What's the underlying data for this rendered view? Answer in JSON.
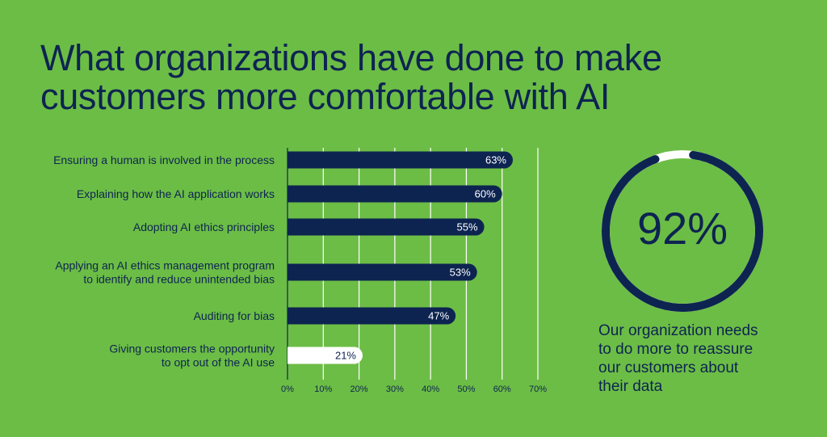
{
  "title": {
    "line1": "What organizations have done to make",
    "line2": "customers more comfortable with AI"
  },
  "colors": {
    "background": "#6cbd45",
    "navy": "#0d2451",
    "highlight": "#ffffff",
    "gridline": "#ffffff"
  },
  "chart_data": {
    "type": "bar",
    "orientation": "horizontal",
    "categories": [
      [
        "Ensuring a human is involved in the process"
      ],
      [
        "Explaining how the AI application works"
      ],
      [
        "Adopting AI ethics principles"
      ],
      [
        "Applying an AI ethics management program",
        "to identify and reduce unintended bias"
      ],
      [
        "Auditing for bias"
      ],
      [
        "Giving customers the opportunity",
        "to opt out of the AI use"
      ]
    ],
    "values": [
      63,
      60,
      55,
      53,
      47,
      21
    ],
    "value_labels": [
      "63%",
      "60%",
      "55%",
      "53%",
      "47%",
      "21%"
    ],
    "highlight_index": 5,
    "xlim": [
      0,
      70
    ],
    "xticks": [
      0,
      10,
      20,
      30,
      40,
      50,
      60,
      70
    ],
    "xtick_labels": [
      "0%",
      "10%",
      "20%",
      "30%",
      "40%",
      "50%",
      "60%",
      "70%"
    ],
    "grid": true
  },
  "stat": {
    "value": 92,
    "label": "92%",
    "caption": [
      "Our organization needs",
      "to do more to reassure",
      "our customers about",
      "their data"
    ]
  }
}
